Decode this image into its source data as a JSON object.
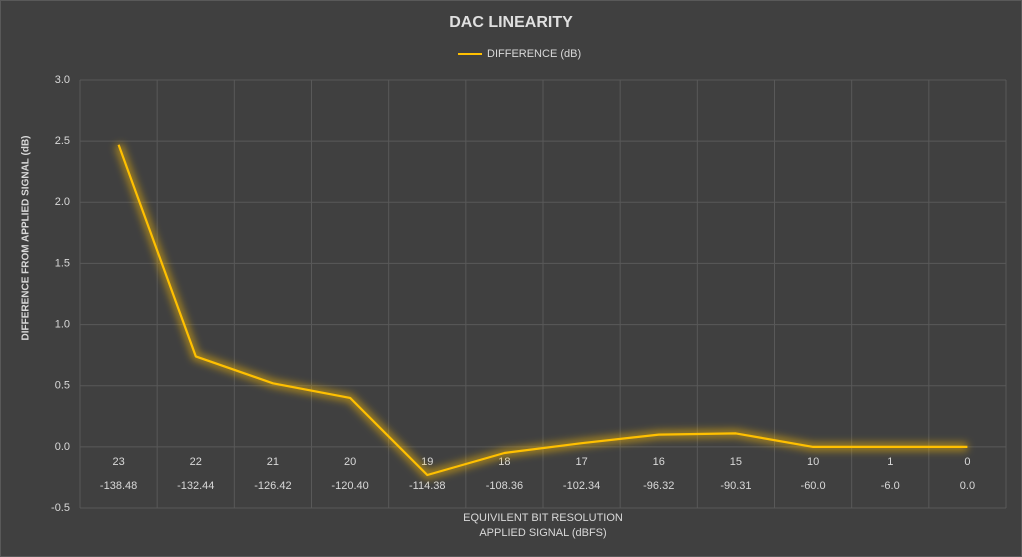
{
  "chart_data": {
    "type": "line",
    "title": "DAC LINEARITY",
    "x_label": "EQUIVILENT BIT  RESOLUTION",
    "x_label_2": "APPLIED SIGNAL (dBFS)",
    "y_label": "DIFFERENCE FROM APPLIED SIGNAL  (dB)",
    "categories": [
      "23",
      "22",
      "21",
      "20",
      "19",
      "18",
      "17",
      "16",
      "15",
      "10",
      "1",
      "0"
    ],
    "sub_categories": [
      "-138.48",
      "-132.44",
      "-126.42",
      "-120.40",
      "-114.38",
      "-108.36",
      "-102.34",
      "-96.32",
      "-90.31",
      "-60.0",
      "-6.0",
      "0.0"
    ],
    "series": [
      {
        "name": "DIFFERENCE (dB)",
        "color": "#ffc000",
        "values": [
          2.47,
          0.74,
          0.52,
          0.4,
          -0.23,
          -0.05,
          0.03,
          0.1,
          0.11,
          0.0,
          0.0,
          0.0
        ]
      }
    ],
    "ylim": [
      -0.5,
      3.0
    ],
    "yticks": [
      -0.5,
      {
        "value": 0,
        "label": "0.0"
      },
      0.5,
      {
        "value": 1,
        "label": "1.0"
      },
      1.5,
      {
        "value": 2,
        "label": "2.0"
      },
      2.5,
      {
        "value": 3,
        "label": "3.0"
      }
    ],
    "grid": true,
    "legend": "top"
  }
}
